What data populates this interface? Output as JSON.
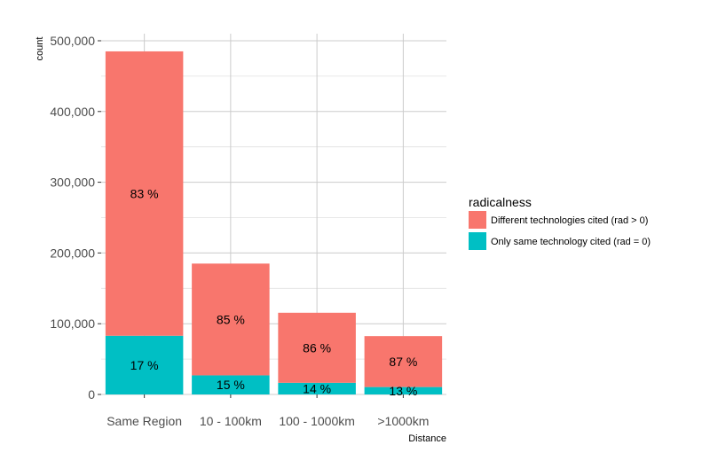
{
  "chart_data": {
    "type": "bar",
    "stacked": true,
    "categories": [
      "Same Region",
      "10 - 100km",
      "100 - 1000km",
      ">1000km"
    ],
    "series": [
      {
        "name": "Only same technology cited (rad = 0)",
        "color": "#00bfc4",
        "values": [
          83000,
          27000,
          16500,
          10500
        ],
        "labels": [
          "17 %",
          "15 %",
          "14 %",
          "13 %"
        ]
      },
      {
        "name": "Different technologies cited (rad > 0)",
        "color": "#f8766d",
        "values": [
          402000,
          158000,
          99000,
          72000
        ],
        "labels": [
          "83 %",
          "85 %",
          "86 %",
          "87 %"
        ]
      }
    ],
    "xlabel": "Distance",
    "ylabel": "count",
    "ylim": [
      0,
      500000
    ],
    "yticks": [
      0,
      100000,
      200000,
      300000,
      400000,
      500000
    ],
    "ytick_labels": [
      "0",
      "100,000",
      "200,000",
      "300,000",
      "400,000",
      "500,000"
    ],
    "grid": true,
    "legend": {
      "title": "radicalness",
      "placement": "right",
      "order": [
        1,
        0
      ]
    }
  }
}
